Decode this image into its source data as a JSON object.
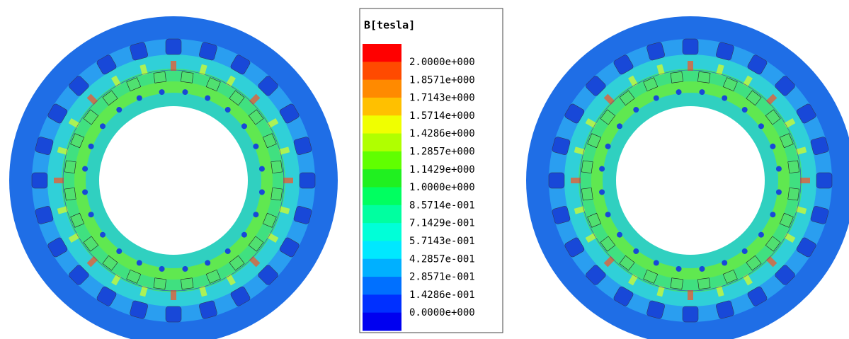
{
  "legend": {
    "title": "B[tesla]",
    "labels": [
      "2.0000e+000",
      "1.8571e+000",
      "1.7143e+000",
      "1.5714e+000",
      "1.4286e+000",
      "1.2857e+000",
      "1.1429e+000",
      "1.0000e+000",
      "8.5714e-001",
      "7.1429e-001",
      "5.7143e-001",
      "4.2857e-001",
      "2.8571e-001",
      "1.4286e-001",
      "0.0000e+000"
    ]
  }
}
